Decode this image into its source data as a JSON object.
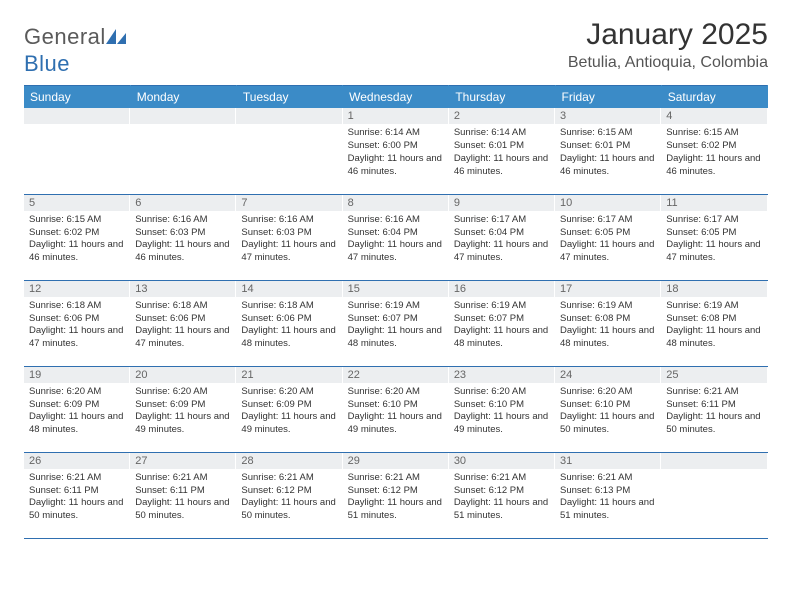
{
  "brand": {
    "part1": "General",
    "part2": "Blue"
  },
  "title": "January 2025",
  "location": "Betulia, Antioquia, Colombia",
  "colors": {
    "header_bg": "#3b8bc7",
    "header_text": "#ffffff",
    "rule": "#2f6fb0",
    "daynum_bg": "#eceef0",
    "logo_gray": "#5a5a5a",
    "logo_blue": "#2f6fb0"
  },
  "day_headers": [
    "Sunday",
    "Monday",
    "Tuesday",
    "Wednesday",
    "Thursday",
    "Friday",
    "Saturday"
  ],
  "weeks": [
    [
      {
        "n": "",
        "lines": []
      },
      {
        "n": "",
        "lines": []
      },
      {
        "n": "",
        "lines": []
      },
      {
        "n": "1",
        "lines": [
          "Sunrise: 6:14 AM",
          "Sunset: 6:00 PM",
          "Daylight: 11 hours and 46 minutes."
        ]
      },
      {
        "n": "2",
        "lines": [
          "Sunrise: 6:14 AM",
          "Sunset: 6:01 PM",
          "Daylight: 11 hours and 46 minutes."
        ]
      },
      {
        "n": "3",
        "lines": [
          "Sunrise: 6:15 AM",
          "Sunset: 6:01 PM",
          "Daylight: 11 hours and 46 minutes."
        ]
      },
      {
        "n": "4",
        "lines": [
          "Sunrise: 6:15 AM",
          "Sunset: 6:02 PM",
          "Daylight: 11 hours and 46 minutes."
        ]
      }
    ],
    [
      {
        "n": "5",
        "lines": [
          "Sunrise: 6:15 AM",
          "Sunset: 6:02 PM",
          "Daylight: 11 hours and 46 minutes."
        ]
      },
      {
        "n": "6",
        "lines": [
          "Sunrise: 6:16 AM",
          "Sunset: 6:03 PM",
          "Daylight: 11 hours and 46 minutes."
        ]
      },
      {
        "n": "7",
        "lines": [
          "Sunrise: 6:16 AM",
          "Sunset: 6:03 PM",
          "Daylight: 11 hours and 47 minutes."
        ]
      },
      {
        "n": "8",
        "lines": [
          "Sunrise: 6:16 AM",
          "Sunset: 6:04 PM",
          "Daylight: 11 hours and 47 minutes."
        ]
      },
      {
        "n": "9",
        "lines": [
          "Sunrise: 6:17 AM",
          "Sunset: 6:04 PM",
          "Daylight: 11 hours and 47 minutes."
        ]
      },
      {
        "n": "10",
        "lines": [
          "Sunrise: 6:17 AM",
          "Sunset: 6:05 PM",
          "Daylight: 11 hours and 47 minutes."
        ]
      },
      {
        "n": "11",
        "lines": [
          "Sunrise: 6:17 AM",
          "Sunset: 6:05 PM",
          "Daylight: 11 hours and 47 minutes."
        ]
      }
    ],
    [
      {
        "n": "12",
        "lines": [
          "Sunrise: 6:18 AM",
          "Sunset: 6:06 PM",
          "Daylight: 11 hours and 47 minutes."
        ]
      },
      {
        "n": "13",
        "lines": [
          "Sunrise: 6:18 AM",
          "Sunset: 6:06 PM",
          "Daylight: 11 hours and 47 minutes."
        ]
      },
      {
        "n": "14",
        "lines": [
          "Sunrise: 6:18 AM",
          "Sunset: 6:06 PM",
          "Daylight: 11 hours and 48 minutes."
        ]
      },
      {
        "n": "15",
        "lines": [
          "Sunrise: 6:19 AM",
          "Sunset: 6:07 PM",
          "Daylight: 11 hours and 48 minutes."
        ]
      },
      {
        "n": "16",
        "lines": [
          "Sunrise: 6:19 AM",
          "Sunset: 6:07 PM",
          "Daylight: 11 hours and 48 minutes."
        ]
      },
      {
        "n": "17",
        "lines": [
          "Sunrise: 6:19 AM",
          "Sunset: 6:08 PM",
          "Daylight: 11 hours and 48 minutes."
        ]
      },
      {
        "n": "18",
        "lines": [
          "Sunrise: 6:19 AM",
          "Sunset: 6:08 PM",
          "Daylight: 11 hours and 48 minutes."
        ]
      }
    ],
    [
      {
        "n": "19",
        "lines": [
          "Sunrise: 6:20 AM",
          "Sunset: 6:09 PM",
          "Daylight: 11 hours and 48 minutes."
        ]
      },
      {
        "n": "20",
        "lines": [
          "Sunrise: 6:20 AM",
          "Sunset: 6:09 PM",
          "Daylight: 11 hours and 49 minutes."
        ]
      },
      {
        "n": "21",
        "lines": [
          "Sunrise: 6:20 AM",
          "Sunset: 6:09 PM",
          "Daylight: 11 hours and 49 minutes."
        ]
      },
      {
        "n": "22",
        "lines": [
          "Sunrise: 6:20 AM",
          "Sunset: 6:10 PM",
          "Daylight: 11 hours and 49 minutes."
        ]
      },
      {
        "n": "23",
        "lines": [
          "Sunrise: 6:20 AM",
          "Sunset: 6:10 PM",
          "Daylight: 11 hours and 49 minutes."
        ]
      },
      {
        "n": "24",
        "lines": [
          "Sunrise: 6:20 AM",
          "Sunset: 6:10 PM",
          "Daylight: 11 hours and 50 minutes."
        ]
      },
      {
        "n": "25",
        "lines": [
          "Sunrise: 6:21 AM",
          "Sunset: 6:11 PM",
          "Daylight: 11 hours and 50 minutes."
        ]
      }
    ],
    [
      {
        "n": "26",
        "lines": [
          "Sunrise: 6:21 AM",
          "Sunset: 6:11 PM",
          "Daylight: 11 hours and 50 minutes."
        ]
      },
      {
        "n": "27",
        "lines": [
          "Sunrise: 6:21 AM",
          "Sunset: 6:11 PM",
          "Daylight: 11 hours and 50 minutes."
        ]
      },
      {
        "n": "28",
        "lines": [
          "Sunrise: 6:21 AM",
          "Sunset: 6:12 PM",
          "Daylight: 11 hours and 50 minutes."
        ]
      },
      {
        "n": "29",
        "lines": [
          "Sunrise: 6:21 AM",
          "Sunset: 6:12 PM",
          "Daylight: 11 hours and 51 minutes."
        ]
      },
      {
        "n": "30",
        "lines": [
          "Sunrise: 6:21 AM",
          "Sunset: 6:12 PM",
          "Daylight: 11 hours and 51 minutes."
        ]
      },
      {
        "n": "31",
        "lines": [
          "Sunrise: 6:21 AM",
          "Sunset: 6:13 PM",
          "Daylight: 11 hours and 51 minutes."
        ]
      },
      {
        "n": "",
        "lines": []
      }
    ]
  ]
}
